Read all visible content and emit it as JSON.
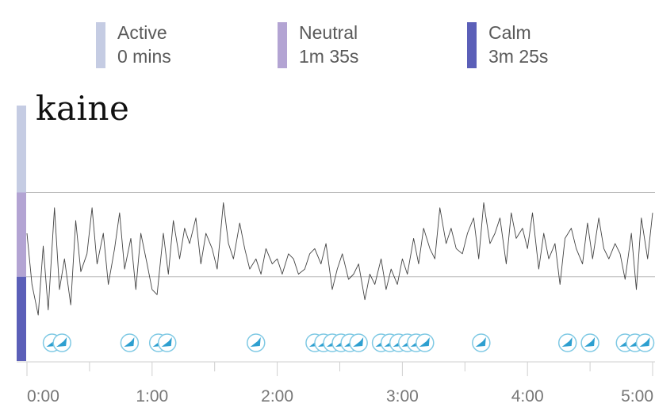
{
  "legend": {
    "items": [
      {
        "label": "Active",
        "value": "0 mins",
        "color": "#c5cce3"
      },
      {
        "label": "Neutral",
        "value": "1m 35s",
        "color": "#b3a4d3"
      },
      {
        "label": "Calm",
        "value": "3m 25s",
        "color": "#5b5fb8"
      }
    ]
  },
  "chart_data": {
    "type": "line",
    "title": "kaine",
    "xlabel": "",
    "ylabel": "",
    "x_unit": "minutes",
    "xlim": [
      0,
      5
    ],
    "x_ticks": [
      "0:00",
      "1:00",
      "2:00",
      "3:00",
      "4:00",
      "5:00"
    ],
    "zones": [
      {
        "name": "Active",
        "color": "#c5cce3"
      },
      {
        "name": "Neutral",
        "color": "#b3a4d3"
      },
      {
        "name": "Calm",
        "color": "#5b5fb8"
      }
    ],
    "ylim": [
      0,
      100
    ],
    "zone_bounds": [
      [
        66,
        100
      ],
      [
        33,
        66
      ],
      [
        0,
        33
      ]
    ],
    "series": [
      {
        "color": "#444444",
        "x": [
          0.0,
          0.04,
          0.09,
          0.13,
          0.17,
          0.22,
          0.26,
          0.3,
          0.35,
          0.39,
          0.43,
          0.48,
          0.52,
          0.56,
          0.61,
          0.65,
          0.7,
          0.74,
          0.78,
          0.83,
          0.87,
          0.91,
          0.96,
          1.0,
          1.04,
          1.09,
          1.13,
          1.17,
          1.22,
          1.26,
          1.3,
          1.35,
          1.39,
          1.43,
          1.48,
          1.52,
          1.57,
          1.61,
          1.65,
          1.7,
          1.74,
          1.78,
          1.83,
          1.87,
          1.91,
          1.96,
          2.0,
          2.04,
          2.09,
          2.13,
          2.17,
          2.22,
          2.26,
          2.3,
          2.35,
          2.39,
          2.44,
          2.48,
          2.52,
          2.57,
          2.61,
          2.65,
          2.7,
          2.74,
          2.78,
          2.83,
          2.87,
          2.91,
          2.96,
          3.0,
          3.04,
          3.09,
          3.13,
          3.17,
          3.22,
          3.26,
          3.3,
          3.35,
          3.39,
          3.43,
          3.48,
          3.52,
          3.57,
          3.61,
          3.65,
          3.7,
          3.74,
          3.78,
          3.83,
          3.87,
          3.91,
          3.96,
          4.0,
          4.04,
          4.09,
          4.13,
          4.17,
          4.22,
          4.26,
          4.3,
          4.35,
          4.39,
          4.44,
          4.48,
          4.52,
          4.57,
          4.61,
          4.65,
          4.7,
          4.74,
          4.78,
          4.83,
          4.87,
          4.91,
          4.96,
          5.0
        ],
        "y": [
          50,
          30,
          18,
          45,
          20,
          60,
          28,
          40,
          22,
          55,
          35,
          42,
          60,
          38,
          50,
          30,
          44,
          58,
          36,
          48,
          28,
          50,
          38,
          28,
          26,
          50,
          34,
          55,
          40,
          52,
          46,
          56,
          38,
          50,
          44,
          36,
          62,
          46,
          40,
          54,
          44,
          36,
          40,
          34,
          44,
          38,
          40,
          34,
          42,
          40,
          34,
          36,
          42,
          44,
          38,
          46,
          28,
          36,
          42,
          32,
          34,
          38,
          24,
          34,
          30,
          40,
          28,
          36,
          30,
          40,
          34,
          48,
          38,
          52,
          44,
          40,
          60,
          46,
          52,
          44,
          42,
          50,
          56,
          40,
          62,
          46,
          50,
          56,
          38,
          58,
          48,
          52,
          44,
          58,
          36,
          50,
          40,
          46,
          30,
          48,
          52,
          44,
          38,
          54,
          40,
          56,
          44,
          40,
          46,
          42,
          32,
          50,
          28,
          56,
          40,
          58
        ]
      }
    ],
    "markers_x": [
      0.2,
      0.28,
      0.82,
      1.05,
      1.12,
      1.83,
      2.3,
      2.37,
      2.44,
      2.51,
      2.58,
      2.65,
      2.83,
      2.9,
      2.97,
      3.04,
      3.11,
      3.18,
      3.63,
      4.32,
      4.5,
      4.78,
      4.86,
      4.94
    ]
  }
}
